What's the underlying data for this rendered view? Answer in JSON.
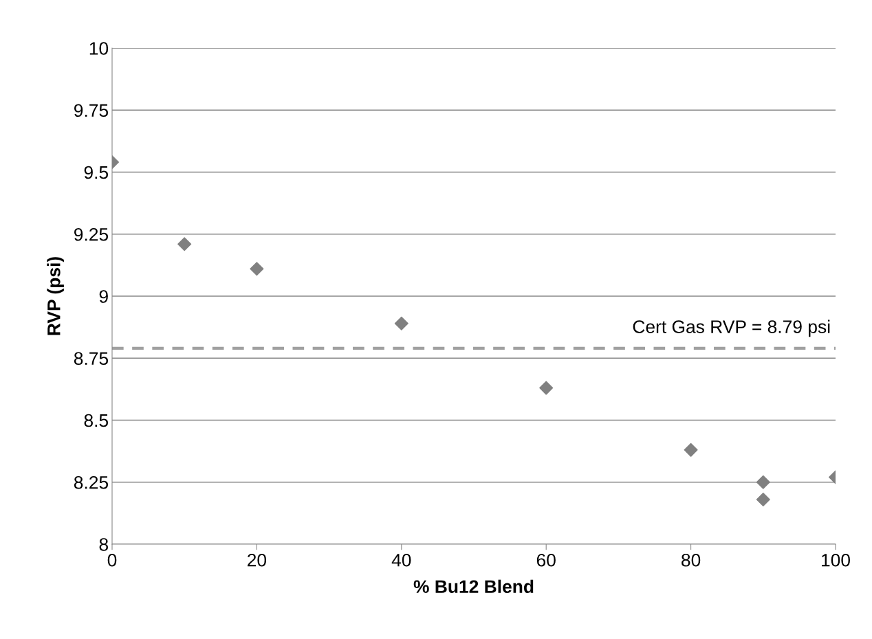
{
  "chart_data": {
    "type": "scatter",
    "xlabel": "% Bu12 Blend",
    "ylabel": "RVP (psi)",
    "x": [
      0,
      10,
      20,
      40,
      60,
      80,
      90,
      90,
      100
    ],
    "series": [
      {
        "color": "#808080",
        "values": [
          9.54,
          9.21,
          9.11,
          8.89,
          8.63,
          8.38,
          8.25,
          8.18,
          8.27
        ]
      }
    ],
    "xlim": [
      0,
      100
    ],
    "xticks": [
      0,
      20,
      40,
      60,
      80,
      100
    ],
    "ylim": [
      8,
      10
    ],
    "yticks": [
      8,
      8.25,
      8.5,
      8.75,
      9,
      9.25,
      9.5,
      9.75,
      10
    ],
    "ref_lines": [
      {
        "axis": "y",
        "value": 8.79,
        "label": "Cert Gas RVP = 8.79 psi",
        "color": "#a0a0a0",
        "line_style": "dashed"
      }
    ],
    "grid": "y",
    "marker": "diamond",
    "legend": false
  }
}
